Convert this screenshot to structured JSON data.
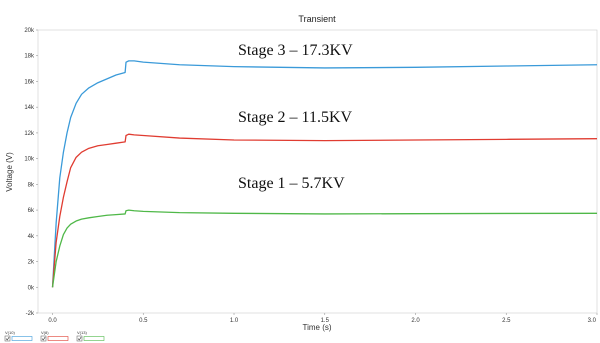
{
  "chart_data": {
    "type": "line",
    "title": "Transient",
    "xlabel": "Time (s)",
    "ylabel": "Voltage (V)",
    "xlim": [
      -0.08,
      3.0
    ],
    "ylim": [
      -2000,
      20000
    ],
    "x_ticks": [
      0.0,
      0.5,
      1.0,
      1.5,
      2.0,
      2.5,
      3.0
    ],
    "x_tick_labels": [
      "0.0",
      "0.5",
      "1.0",
      "1.5",
      "2.0",
      "2.5",
      "3.0"
    ],
    "y_ticks": [
      -2000,
      0,
      2000,
      4000,
      6000,
      8000,
      10000,
      12000,
      14000,
      16000,
      18000,
      20000
    ],
    "y_tick_labels": [
      "-2k",
      "0k",
      "2k",
      "4k",
      "6k",
      "8k",
      "10k",
      "12k",
      "14k",
      "16k",
      "18k",
      "20k"
    ],
    "grid": false,
    "legend_position": "bottom-left",
    "series": [
      {
        "name": "V(10)",
        "color": "#3a9ad9",
        "x": [
          0.0,
          0.02,
          0.04,
          0.06,
          0.08,
          0.1,
          0.13,
          0.16,
          0.2,
          0.25,
          0.3,
          0.35,
          0.4,
          0.405,
          0.42,
          0.45,
          0.5,
          0.7,
          1.0,
          1.5,
          2.0,
          2.5,
          3.0
        ],
        "y": [
          0,
          5000,
          8500,
          10500,
          12000,
          13200,
          14300,
          15000,
          15500,
          15900,
          16200,
          16500,
          16700,
          17500,
          17600,
          17600,
          17500,
          17300,
          17150,
          17050,
          17100,
          17200,
          17300
        ]
      },
      {
        "name": "V(8)",
        "color": "#e03c31",
        "x": [
          0.0,
          0.02,
          0.04,
          0.06,
          0.08,
          0.1,
          0.13,
          0.16,
          0.2,
          0.25,
          0.3,
          0.35,
          0.4,
          0.405,
          0.42,
          0.45,
          0.5,
          0.7,
          1.0,
          1.5,
          2.0,
          2.5,
          3.0
        ],
        "y": [
          0,
          3500,
          5500,
          7000,
          8200,
          9300,
          10100,
          10500,
          10800,
          11000,
          11100,
          11200,
          11300,
          11800,
          11900,
          11850,
          11800,
          11600,
          11450,
          11400,
          11450,
          11500,
          11550
        ]
      },
      {
        "name": "V(13)",
        "color": "#4fb848",
        "x": [
          0.0,
          0.02,
          0.04,
          0.06,
          0.08,
          0.1,
          0.13,
          0.16,
          0.2,
          0.25,
          0.3,
          0.35,
          0.4,
          0.405,
          0.42,
          0.45,
          0.5,
          0.7,
          1.0,
          1.5,
          2.0,
          2.5,
          3.0
        ],
        "y": [
          0,
          2000,
          3200,
          4100,
          4600,
          4900,
          5150,
          5300,
          5400,
          5500,
          5600,
          5650,
          5700,
          5950,
          6000,
          5950,
          5900,
          5800,
          5750,
          5700,
          5720,
          5740,
          5750
        ]
      }
    ],
    "annotations": [
      "Stage 3 – 17.3KV",
      "Stage 2 – 11.5KV",
      "Stage 1 – 5.7KV"
    ]
  }
}
